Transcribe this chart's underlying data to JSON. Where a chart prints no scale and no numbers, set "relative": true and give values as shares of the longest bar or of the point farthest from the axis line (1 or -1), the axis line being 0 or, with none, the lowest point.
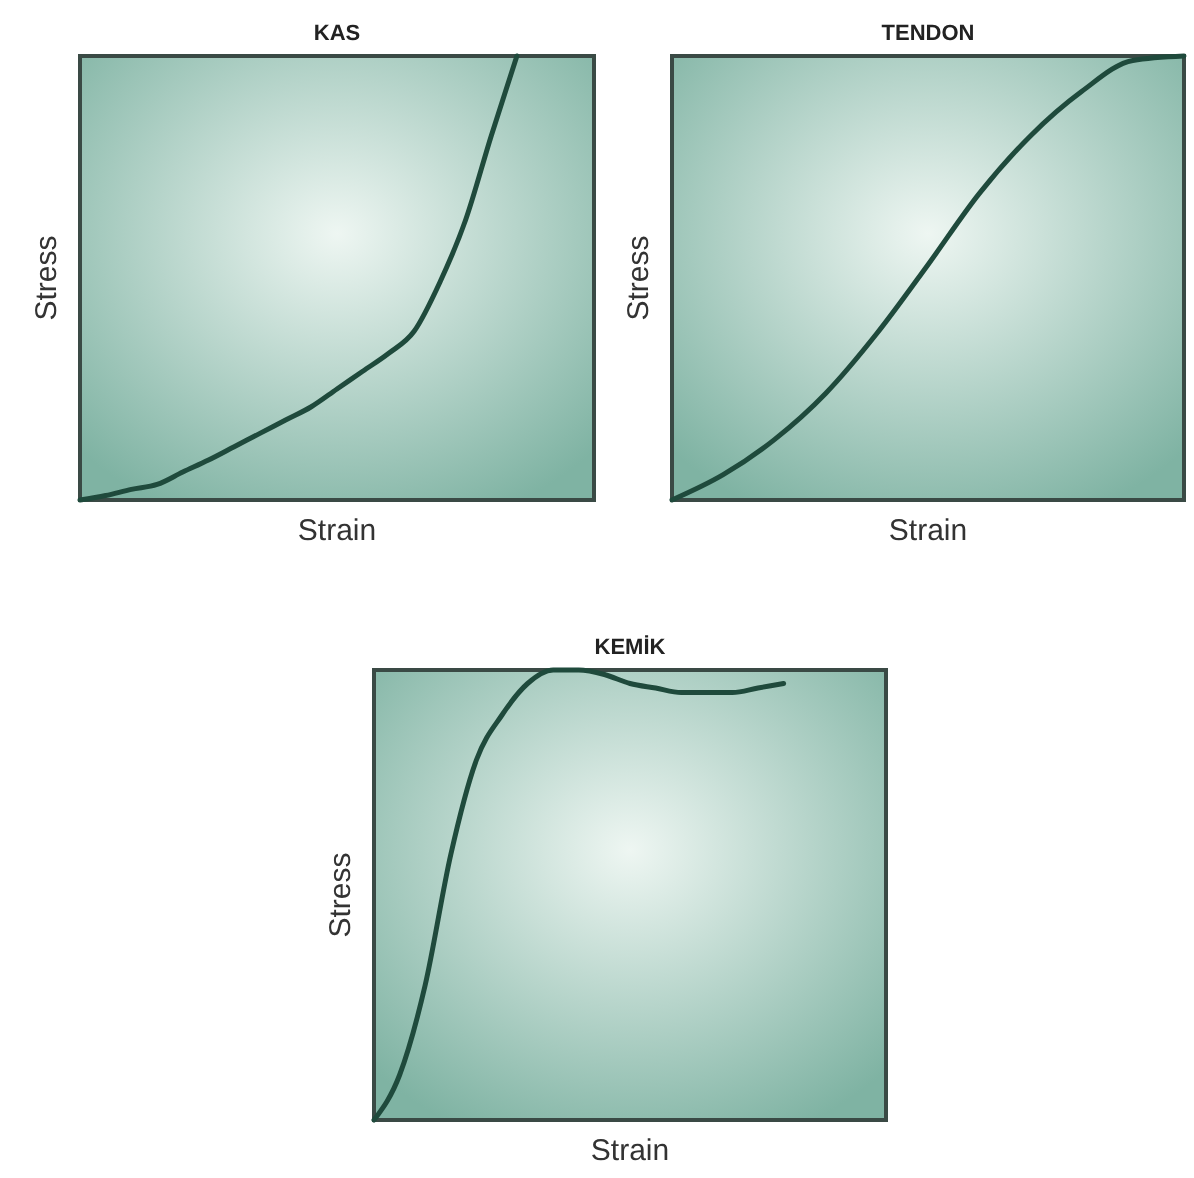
{
  "chart_data": [
    {
      "type": "line",
      "title": "KAS",
      "xlabel": "Strain",
      "ylabel": "Stress",
      "relative": true,
      "categories": [
        null,
        null,
        null,
        null,
        null,
        null,
        null,
        null,
        null,
        null,
        null,
        null,
        null,
        null,
        null,
        null,
        null,
        null,
        null,
        null,
        null
      ],
      "series": [
        {
          "color": "#1f4a3c",
          "values": [
            0,
            0.01,
            0.024,
            0.035,
            0.063,
            0.09,
            0.12,
            0.15,
            0.18,
            0.21,
            0.25,
            0.29,
            0.33,
            0.38,
            0.49,
            0.63,
            0.82,
            1,
            null,
            null,
            null
          ]
        }
      ]
    },
    {
      "type": "line",
      "title": "TENDON",
      "xlabel": "Strain",
      "ylabel": "Stress",
      "relative": true,
      "categories": [
        null,
        null,
        null,
        null,
        null,
        null,
        null,
        null,
        null,
        null,
        null
      ],
      "series": [
        {
          "color": "#1f4a3c",
          "values": [
            0,
            0.057,
            0.136,
            0.24,
            0.375,
            0.53,
            0.69,
            0.82,
            0.92,
            0.99,
            1
          ]
        }
      ]
    },
    {
      "type": "line",
      "title": "KEMİK",
      "xlabel": "Strain",
      "ylabel": "Stress",
      "relative": true,
      "categories": [
        null,
        null,
        null,
        null,
        null,
        null,
        null,
        null,
        null,
        null,
        null,
        null,
        null,
        null,
        null,
        null,
        null,
        null,
        null,
        null,
        null
      ],
      "series": [
        {
          "color": "#1f4a3c",
          "values": [
            0,
            0.1,
            0.3,
            0.59,
            0.8,
            0.9,
            0.97,
            1,
            1,
            0.99,
            0.97,
            0.96,
            0.95,
            0.95,
            0.95,
            0.96,
            0.97,
            null,
            null,
            null,
            null
          ]
        }
      ]
    }
  ]
}
